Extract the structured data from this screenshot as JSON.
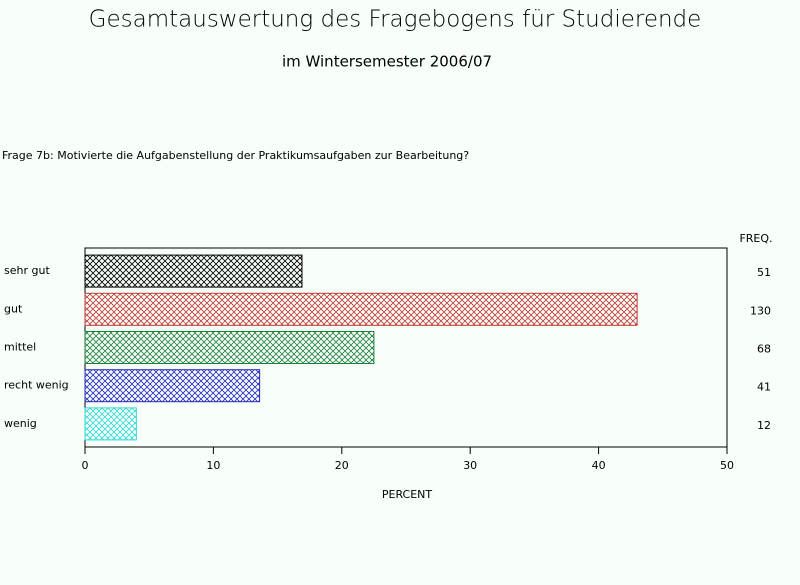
{
  "chart_data": {
    "type": "barh",
    "title": "Gesamtauswertung des Fragebogens für Studierende",
    "subtitle": "im Wintersemester 2006/07",
    "question": "Frage 7b: Motivierte die Aufgabenstellung der Praktikumsaufgaben zur Bearbeitung?",
    "categories": [
      "sehr gut",
      "gut",
      "mittel",
      "recht wenig",
      "wenig"
    ],
    "values": [
      16.9,
      43.0,
      22.5,
      13.6,
      4.0
    ],
    "colors": [
      "#000000",
      "#c03838",
      "#208040",
      "#2828c0",
      "#30d8d8"
    ],
    "freq_label": "FREQ.",
    "freq": [
      51,
      130,
      68,
      41,
      12
    ],
    "xlabel": "PERCENT",
    "xlim": [
      0,
      50
    ],
    "xticks": [
      0,
      10,
      20,
      30,
      40,
      50
    ]
  }
}
